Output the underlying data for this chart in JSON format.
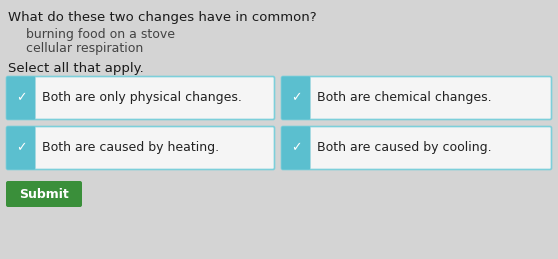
{
  "background_color": "#d4d4d4",
  "title": "What do these two changes have in common?",
  "title_fontsize": 9.5,
  "items": [
    "burning food on a stove",
    "cellular respiration"
  ],
  "items_fontsize": 9,
  "select_label": "Select all that apply.",
  "select_fontsize": 9.5,
  "options": [
    [
      "Both are only physical changes.",
      "Both are chemical changes."
    ],
    [
      "Both are caused by heating.",
      "Both are caused by cooling."
    ]
  ],
  "option_fontsize": 9,
  "checkbox_color": "#5bbfcf",
  "checkbox_check_color": "#ffffff",
  "box_border_color": "#7dcfda",
  "box_bg_color": "#f5f5f5",
  "submit_bg": "#3a8f3a",
  "submit_text": "Submit",
  "submit_text_color": "#ffffff",
  "submit_fontsize": 9
}
